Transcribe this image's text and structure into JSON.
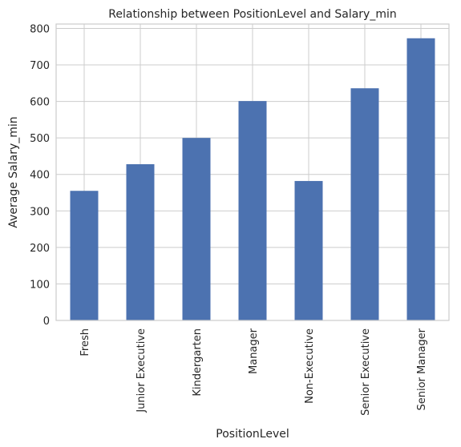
{
  "chart_data": {
    "type": "bar",
    "title": "Relationship between PositionLevel and Salary_min",
    "xlabel": "PositionLevel",
    "ylabel": "Average Salary_min",
    "categories": [
      "Fresh",
      "Junior Executive",
      "Kindergarten",
      "Manager",
      "Non-Executive",
      "Senior Executive",
      "Senior Manager"
    ],
    "values": [
      355,
      428,
      500,
      601,
      382,
      636,
      773
    ],
    "ylim": [
      0,
      812
    ],
    "yticks": [
      0,
      100,
      200,
      300,
      400,
      500,
      600,
      700,
      800
    ],
    "grid": true,
    "colors": {
      "bar": "#4c72b0",
      "grid": "#cccccc",
      "axis": "#cccccc"
    }
  }
}
